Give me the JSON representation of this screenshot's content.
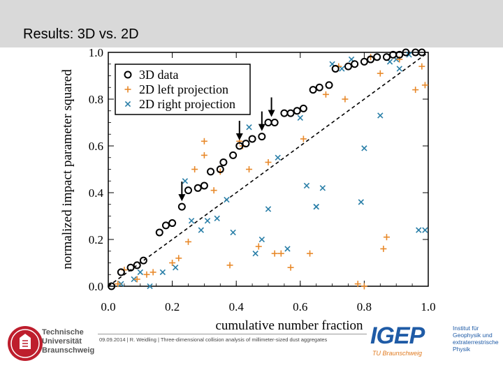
{
  "slide": {
    "title": "Results: 3D vs. 2D"
  },
  "footer": {
    "text": "09.09.2014 | R. Weidling | Three-dimensional collision analysis of millimeter-sized dust aggregates"
  },
  "logos": {
    "tu": [
      "Technische",
      "Universität",
      "Braunschweig"
    ],
    "igep": "IGEP",
    "igep_sub": "TU Braunschweig",
    "institute": [
      "Institut für",
      "Geophysik und",
      "extraterrestrische",
      "Physik"
    ]
  },
  "colors": {
    "series_3d": "#000000",
    "series_left": "#e8892a",
    "series_right": "#2a7fa8",
    "tu_red": "#be1e2d",
    "igep_blue": "#1f5ba6",
    "igep_orange": "#e07a1f"
  },
  "chart_data": {
    "type": "scatter",
    "title": "",
    "xlabel": "cumulative number fraction",
    "ylabel": "normalized impact parameter squared",
    "xlim": [
      0.0,
      1.0
    ],
    "ylim": [
      0.0,
      1.0
    ],
    "x_ticks": [
      "0.0",
      "0.2",
      "0.4",
      "0.6",
      "0.8",
      "1.0"
    ],
    "y_ticks": [
      "0.0",
      "0.2",
      "0.4",
      "0.6",
      "0.8",
      "1.0"
    ],
    "legend_position": "top-left",
    "grid": false,
    "reference_line": "dashed diagonal y = x",
    "series": [
      {
        "name": "3D data",
        "marker": "circle",
        "points": [
          [
            0.01,
            0.0
          ],
          [
            0.04,
            0.06
          ],
          [
            0.07,
            0.08
          ],
          [
            0.09,
            0.09
          ],
          [
            0.11,
            0.11
          ],
          [
            0.16,
            0.23
          ],
          [
            0.18,
            0.26
          ],
          [
            0.2,
            0.27
          ],
          [
            0.23,
            0.34
          ],
          [
            0.25,
            0.41
          ],
          [
            0.28,
            0.42
          ],
          [
            0.3,
            0.43
          ],
          [
            0.32,
            0.49
          ],
          [
            0.35,
            0.5
          ],
          [
            0.36,
            0.53
          ],
          [
            0.39,
            0.56
          ],
          [
            0.41,
            0.6
          ],
          [
            0.43,
            0.61
          ],
          [
            0.45,
            0.63
          ],
          [
            0.48,
            0.64
          ],
          [
            0.5,
            0.7
          ],
          [
            0.52,
            0.7
          ],
          [
            0.55,
            0.74
          ],
          [
            0.57,
            0.74
          ],
          [
            0.59,
            0.75
          ],
          [
            0.61,
            0.76
          ],
          [
            0.64,
            0.84
          ],
          [
            0.66,
            0.85
          ],
          [
            0.69,
            0.86
          ],
          [
            0.71,
            0.93
          ],
          [
            0.75,
            0.94
          ],
          [
            0.77,
            0.95
          ],
          [
            0.8,
            0.96
          ],
          [
            0.82,
            0.97
          ],
          [
            0.84,
            0.98
          ],
          [
            0.87,
            0.98
          ],
          [
            0.89,
            0.99
          ],
          [
            0.91,
            0.99
          ],
          [
            0.93,
            1.0
          ],
          [
            0.96,
            1.0
          ],
          [
            0.98,
            1.0
          ]
        ]
      },
      {
        "name": "2D left projection",
        "marker": "plus",
        "points": [
          [
            0.03,
            0.01
          ],
          [
            0.05,
            0.07
          ],
          [
            0.09,
            0.03
          ],
          [
            0.12,
            0.05
          ],
          [
            0.14,
            0.06
          ],
          [
            0.2,
            0.1
          ],
          [
            0.22,
            0.12
          ],
          [
            0.25,
            0.19
          ],
          [
            0.3,
            0.56
          ],
          [
            0.33,
            0.41
          ],
          [
            0.35,
            0.49
          ],
          [
            0.38,
            0.09
          ],
          [
            0.44,
            0.5
          ],
          [
            0.47,
            0.17
          ],
          [
            0.5,
            0.53
          ],
          [
            0.52,
            0.14
          ],
          [
            0.54,
            0.14
          ],
          [
            0.57,
            0.08
          ],
          [
            0.61,
            0.63
          ],
          [
            0.63,
            0.14
          ],
          [
            0.72,
            0.94
          ],
          [
            0.74,
            0.8
          ],
          [
            0.78,
            0.01
          ],
          [
            0.8,
            0.0
          ],
          [
            0.85,
            0.91
          ],
          [
            0.86,
            0.16
          ],
          [
            0.91,
            0.97
          ],
          [
            0.96,
            0.84
          ],
          [
            0.98,
            0.94
          ],
          [
            0.99,
            0.86
          ],
          [
            0.3,
            0.62
          ],
          [
            0.27,
            0.5
          ],
          [
            0.41,
            0.62
          ],
          [
            0.68,
            0.82
          ],
          [
            0.82,
            0.98
          ],
          [
            0.87,
            0.21
          ],
          [
            0.42,
            0.6
          ]
        ]
      },
      {
        "name": "2D right projection",
        "marker": "x",
        "points": [
          [
            0.04,
            0.01
          ],
          [
            0.08,
            0.03
          ],
          [
            0.1,
            0.06
          ],
          [
            0.13,
            0.0
          ],
          [
            0.17,
            0.06
          ],
          [
            0.21,
            0.08
          ],
          [
            0.24,
            0.45
          ],
          [
            0.26,
            0.28
          ],
          [
            0.29,
            0.24
          ],
          [
            0.31,
            0.28
          ],
          [
            0.34,
            0.29
          ],
          [
            0.37,
            0.37
          ],
          [
            0.39,
            0.23
          ],
          [
            0.42,
            0.87
          ],
          [
            0.44,
            0.68
          ],
          [
            0.46,
            0.14
          ],
          [
            0.48,
            0.2
          ],
          [
            0.5,
            0.33
          ],
          [
            0.53,
            0.55
          ],
          [
            0.56,
            0.16
          ],
          [
            0.6,
            0.72
          ],
          [
            0.62,
            0.43
          ],
          [
            0.65,
            0.34
          ],
          [
            0.67,
            0.42
          ],
          [
            0.7,
            0.95
          ],
          [
            0.73,
            0.93
          ],
          [
            0.76,
            0.97
          ],
          [
            0.79,
            0.36
          ],
          [
            0.8,
            0.59
          ],
          [
            0.85,
            0.73
          ],
          [
            0.88,
            0.96
          ],
          [
            0.91,
            0.93
          ],
          [
            0.94,
            0.99
          ],
          [
            0.97,
            0.24
          ],
          [
            0.99,
            0.24
          ],
          [
            0.65,
            0.34
          ],
          [
            0.9,
            0.97
          ]
        ]
      }
    ],
    "arrows": [
      {
        "x": 0.23,
        "y": 0.34
      },
      {
        "x": 0.41,
        "y": 0.6
      },
      {
        "x": 0.48,
        "y": 0.64
      },
      {
        "x": 0.51,
        "y": 0.7
      }
    ]
  }
}
